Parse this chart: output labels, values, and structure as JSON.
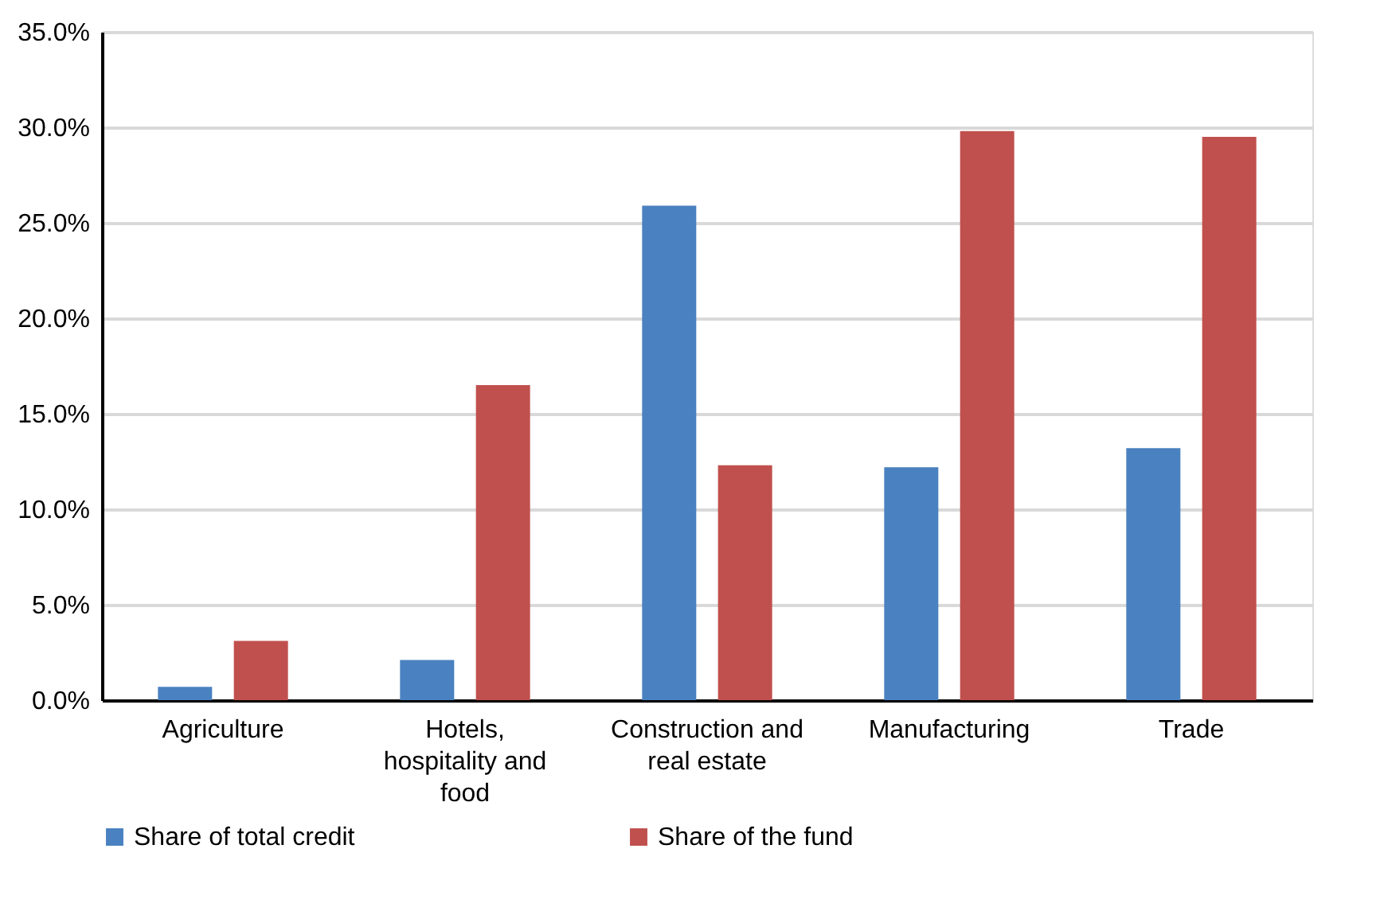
{
  "chart_data": {
    "type": "bar",
    "categories": [
      "Agriculture",
      "Hotels, hospitality and food",
      "Construction and real estate",
      "Manufacturing",
      "Trade"
    ],
    "series": [
      {
        "name": "Share of total credit",
        "color": "#4a81c0",
        "values": [
          0.7,
          2.1,
          25.9,
          12.2,
          13.2
        ]
      },
      {
        "name": "Share of the fund",
        "color": "#c0504d",
        "values": [
          3.1,
          16.5,
          12.3,
          29.8,
          29.5
        ]
      }
    ],
    "ylim": [
      0,
      35
    ],
    "yticks": [
      {
        "value": 0,
        "label": "0.0%"
      },
      {
        "value": 5,
        "label": "5.0%"
      },
      {
        "value": 10,
        "label": "10.0%"
      },
      {
        "value": 15,
        "label": "15.0%"
      },
      {
        "value": 20,
        "label": "20.0%"
      },
      {
        "value": 25,
        "label": "25.0%"
      },
      {
        "value": 30,
        "label": "30.0%"
      },
      {
        "value": 35,
        "label": "35.0%"
      }
    ],
    "grid": "y",
    "legend": "bottom"
  }
}
